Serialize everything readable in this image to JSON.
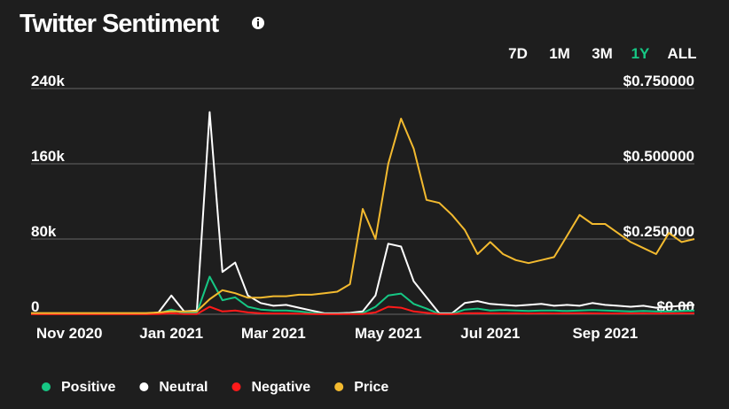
{
  "chart_data": {
    "type": "line",
    "title": "Twitter Sentiment",
    "range_buttons": [
      "7D",
      "1M",
      "3M",
      "1Y",
      "ALL"
    ],
    "active_range": "1Y",
    "categories": [
      null,
      null,
      null,
      "Nov 2020",
      null,
      null,
      null,
      null,
      null,
      null,
      null,
      "Jan 2021",
      null,
      null,
      null,
      null,
      null,
      null,
      null,
      "Mar 2021",
      null,
      null,
      null,
      null,
      null,
      null,
      null,
      null,
      "May 2021",
      null,
      null,
      null,
      null,
      null,
      null,
      null,
      "Jul 2021",
      null,
      null,
      null,
      null,
      null,
      null,
      null,
      null,
      "Sep 2021",
      null,
      null,
      null,
      null,
      null,
      null,
      null
    ],
    "series": [
      {
        "name": "Neutral",
        "color": "#ffffff",
        "values": [
          500,
          500,
          500,
          500,
          500,
          500,
          500,
          500,
          500,
          500,
          2000,
          20000,
          3000,
          4000,
          215000,
          45000,
          55000,
          20000,
          12000,
          9000,
          10000,
          7000,
          4000,
          1000,
          1000,
          1500,
          3000,
          20000,
          75000,
          72000,
          35000,
          18000,
          1000,
          1000,
          12000,
          14000,
          11000,
          10000,
          9000,
          10000,
          11000,
          9000,
          10000,
          9000,
          12000,
          10000,
          9000,
          8000,
          9000,
          7000,
          8000,
          9000,
          10000
        ]
      },
      {
        "name": "Positive",
        "color": "#16c784",
        "values": [
          200,
          200,
          200,
          200,
          200,
          200,
          200,
          200,
          200,
          200,
          800,
          5000,
          1000,
          1500,
          40000,
          15000,
          18000,
          8000,
          5000,
          4000,
          4000,
          3000,
          1500,
          400,
          400,
          600,
          1200,
          8000,
          20000,
          22000,
          11000,
          6000,
          400,
          400,
          5000,
          6000,
          4000,
          4500,
          4000,
          3500,
          4000,
          4000,
          3500,
          4000,
          4500,
          4000,
          3500,
          3000,
          3500,
          3000,
          3000,
          3500,
          4000
        ]
      },
      {
        "name": "Negative",
        "color": "#ff1a1a",
        "values": [
          50,
          50,
          50,
          50,
          50,
          50,
          50,
          50,
          50,
          50,
          200,
          1000,
          200,
          300,
          8000,
          3000,
          4000,
          2000,
          1000,
          800,
          800,
          600,
          300,
          100,
          100,
          150,
          300,
          2000,
          8000,
          7000,
          3000,
          1500,
          100,
          100,
          1000,
          1200,
          1000,
          900,
          1000,
          800,
          1000,
          900,
          1000,
          1100,
          1000,
          900,
          800,
          900,
          1000,
          800,
          900,
          1000,
          1000
        ]
      },
      {
        "name": "Price",
        "color": "#f3ba2f",
        "axis": "y2",
        "values": [
          0.004,
          0.004,
          0.004,
          0.004,
          0.004,
          0.004,
          0.004,
          0.004,
          0.004,
          0.004,
          0.006,
          0.01,
          0.009,
          0.01,
          0.05,
          0.08,
          0.07,
          0.055,
          0.055,
          0.06,
          0.06,
          0.065,
          0.065,
          0.07,
          0.075,
          0.1,
          0.35,
          0.25,
          0.5,
          0.65,
          0.55,
          0.38,
          0.37,
          0.33,
          0.28,
          0.2,
          0.24,
          0.2,
          0.18,
          0.17,
          0.18,
          0.19,
          0.26,
          0.33,
          0.3,
          0.3,
          0.27,
          0.24,
          0.22,
          0.2,
          0.27,
          0.24,
          0.25
        ]
      }
    ],
    "ylim": [
      0,
      240000
    ],
    "yticks": [
      0,
      {
        "value": 80000,
        "label": "80k"
      },
      {
        "value": 160000,
        "label": "160k"
      },
      {
        "value": 240000,
        "label": "240k"
      }
    ],
    "y2lim": [
      0,
      0.75
    ],
    "y2ticks": [
      {
        "value": 0,
        "label": "$0.00"
      },
      {
        "value": 0.25,
        "label": "$0.250000"
      },
      {
        "value": 0.5,
        "label": "$0.500000"
      },
      {
        "value": 0.75,
        "label": "$0.750000"
      }
    ],
    "grid": true
  }
}
